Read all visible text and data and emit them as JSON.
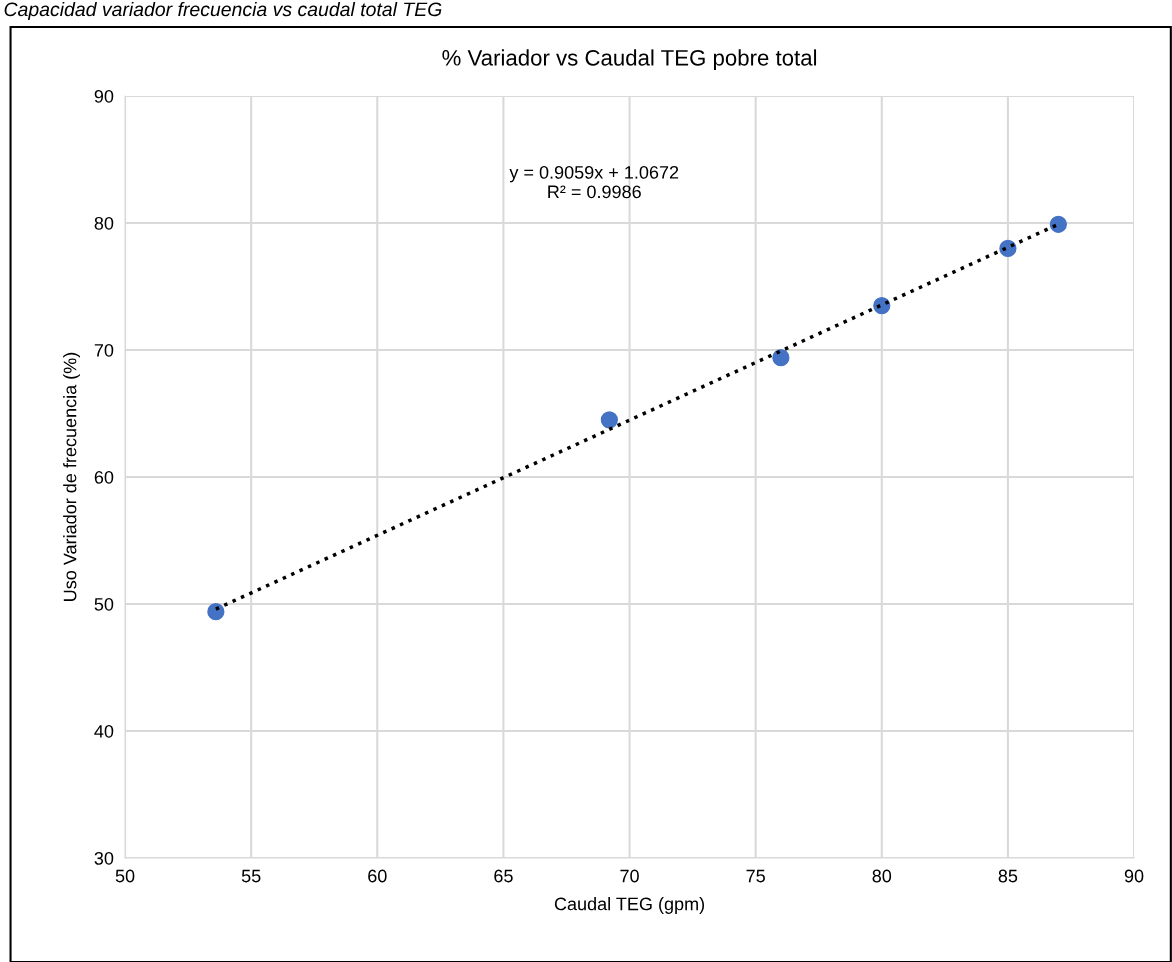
{
  "chart_data": {
    "type": "scatter",
    "title": "% Variador vs Caudal TEG pobre total",
    "xlabel": "Caudal TEG (gpm)",
    "ylabel": "Uso Variador de frecuencia (%)",
    "annotations": [
      "Capacidad variador frecuencia vs caudal total TEG",
      "y = 0.9059x + 1.0672\nR² = 0.9986"
    ],
    "series": [
      {
        "color": "#4472c4",
        "marker": "circle",
        "x": [
          53.6,
          69.2,
          76.0,
          80.0,
          85.0,
          87.0
        ],
        "values": [
          49.4,
          64.5,
          69.4,
          73.5,
          78.0,
          79.9
        ]
      },
      {
        "type": "line",
        "color": "#000000",
        "line_style": "dotted",
        "marker": "none",
        "x": [
          53.6,
          87.0
        ],
        "values": [
          49.6,
          79.9
        ]
      }
    ],
    "xlim": [
      50,
      90
    ],
    "xticks": [
      50,
      55,
      60,
      65,
      70,
      75,
      80,
      85,
      90
    ],
    "ylim": [
      30,
      90
    ],
    "yticks": [
      30,
      40,
      50,
      60,
      70,
      80,
      90
    ],
    "grid": true,
    "legend": false
  }
}
